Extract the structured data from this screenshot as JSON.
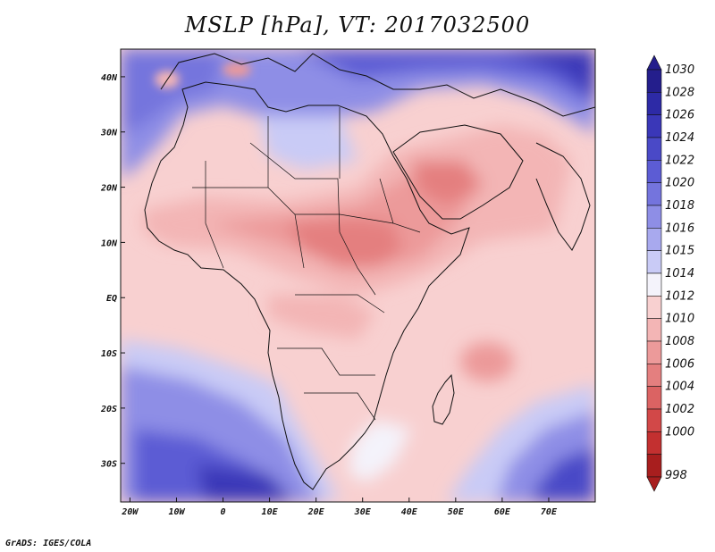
{
  "title": "MSLP [hPa], VT: 2017032500",
  "footer": "GrADS: IGES/COLA",
  "map": {
    "region": "Africa",
    "variable": "MSLP",
    "units": "hPa",
    "lon_range": [
      -22,
      80
    ],
    "lat_range": [
      -37,
      45
    ],
    "lon_ticks": [
      {
        "lon": -20,
        "label": "20W"
      },
      {
        "lon": -10,
        "label": "10W"
      },
      {
        "lon": 0,
        "label": "0"
      },
      {
        "lon": 10,
        "label": "10E"
      },
      {
        "lon": 20,
        "label": "20E"
      },
      {
        "lon": 30,
        "label": "30E"
      },
      {
        "lon": 40,
        "label": "40E"
      },
      {
        "lon": 50,
        "label": "50E"
      },
      {
        "lon": 60,
        "label": "60E"
      },
      {
        "lon": 70,
        "label": "70E"
      }
    ],
    "lat_ticks": [
      {
        "lat": 40,
        "label": "40N"
      },
      {
        "lat": 30,
        "label": "30N"
      },
      {
        "lat": 20,
        "label": "20N"
      },
      {
        "lat": 10,
        "label": "10N"
      },
      {
        "lat": 0,
        "label": "EQ"
      },
      {
        "lat": -10,
        "label": "10S"
      },
      {
        "lat": -20,
        "label": "20S"
      },
      {
        "lat": -30,
        "label": "30S"
      }
    ],
    "colorbar": {
      "levels": [
        "1030",
        "1028",
        "1026",
        "1024",
        "1022",
        "1020",
        "1018",
        "1016",
        "1015",
        "1014",
        "1012",
        "1010",
        "1008",
        "1006",
        "1004",
        "1002",
        "1000",
        "998"
      ],
      "colors": [
        "#241e8c",
        "#2d2aa6",
        "#3a37b8",
        "#4a49c7",
        "#5c5cd4",
        "#7474dd",
        "#8e8ee6",
        "#a8a9ee",
        "#c9cbf6",
        "#f4f3fb",
        "#f8d0d0",
        "#f3b5b5",
        "#ec9a9a",
        "#e47f7f",
        "#db6363",
        "#d24848",
        "#c33030",
        "#a81e1e"
      ]
    }
  }
}
